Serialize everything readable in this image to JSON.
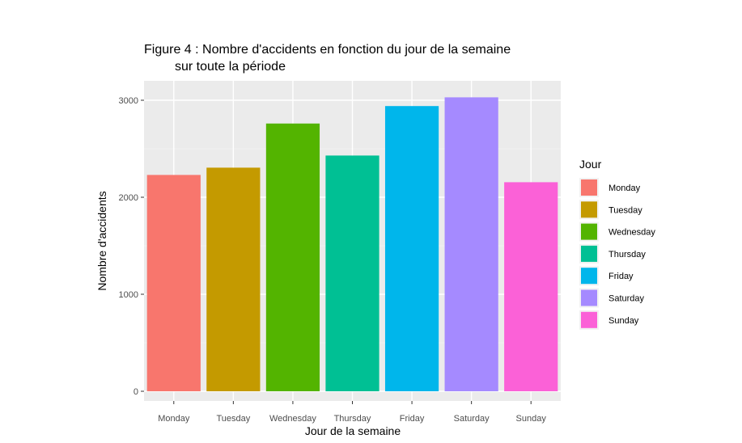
{
  "chart_data": {
    "type": "bar",
    "title": "Figure 4 : Nombre d'accidents en fonction du jour de la semaine",
    "subtitle": "sur toute la période",
    "xlabel": "Jour de la semaine",
    "ylabel": "Nombre d'accidents",
    "categories": [
      "Monday",
      "Tuesday",
      "Wednesday",
      "Thursday",
      "Friday",
      "Saturday",
      "Sunday"
    ],
    "values": [
      2230,
      2305,
      2760,
      2430,
      2940,
      3030,
      2155
    ],
    "colors": [
      "#F8766D",
      "#C49A00",
      "#53B400",
      "#00C094",
      "#00B6EB",
      "#A58AFF",
      "#FB61D7"
    ],
    "ylim": [
      0,
      3200
    ],
    "yticks": [
      0,
      1000,
      2000,
      3000
    ],
    "ytick_labels": [
      "0",
      "1000",
      "2000",
      "3000"
    ],
    "grid": true,
    "legend": {
      "title": "Jour",
      "placement": "right",
      "entries": [
        "Monday",
        "Tuesday",
        "Wednesday",
        "Thursday",
        "Friday",
        "Saturday",
        "Sunday"
      ]
    }
  }
}
